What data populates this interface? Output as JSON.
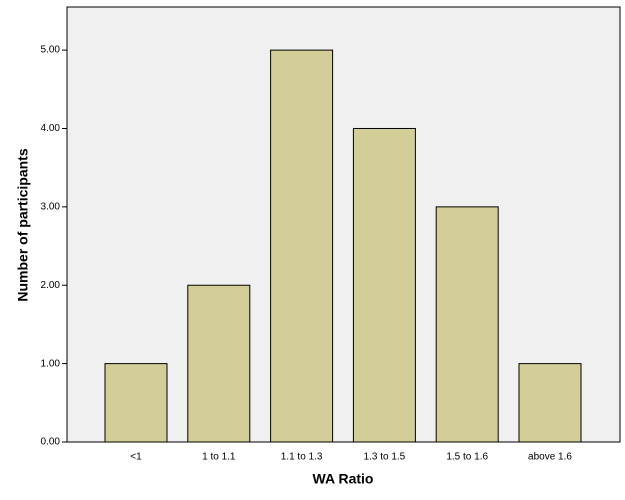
{
  "chart_data": {
    "type": "bar",
    "x_label": "WA Ratio",
    "y_label": "Number of participants",
    "categories": [
      "<1",
      "1 to 1.1",
      "1.1 to 1.3",
      "1.3 to 1.5",
      "1.5 to 1.6",
      "above 1.6"
    ],
    "values": [
      1,
      2,
      5,
      4,
      3,
      1
    ],
    "color": "#d3ce97",
    "ylim": [
      0,
      5.55
    ],
    "yticks": [
      {
        "value": 0,
        "label": "0.00"
      },
      {
        "value": 1,
        "label": "1.00"
      },
      {
        "value": 2,
        "label": "2.00"
      },
      {
        "value": 3,
        "label": "3.00"
      },
      {
        "value": 4,
        "label": "4.00"
      },
      {
        "value": 5,
        "label": "5.00"
      }
    ]
  }
}
